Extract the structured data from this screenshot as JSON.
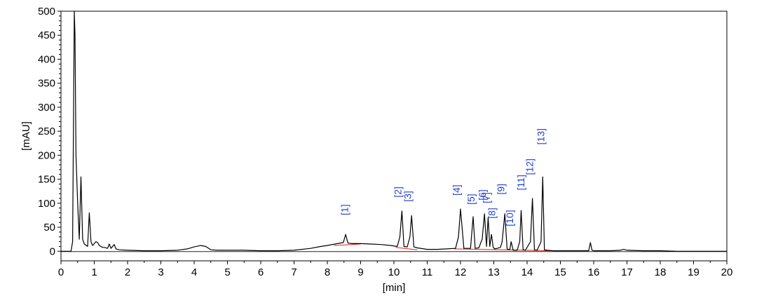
{
  "chart_data": {
    "type": "line",
    "xlabel": "[min]",
    "ylabel": "[mAU]",
    "xlim": [
      0,
      20
    ],
    "ylim": [
      -20,
      500
    ],
    "x_ticks": [
      0,
      1,
      2,
      3,
      4,
      5,
      6,
      7,
      8,
      9,
      10,
      11,
      12,
      13,
      14,
      15,
      16,
      17,
      18,
      19,
      20
    ],
    "y_ticks": [
      0,
      50,
      100,
      150,
      200,
      250,
      300,
      350,
      400,
      450,
      500
    ],
    "grid": false,
    "legend": "none",
    "colors": {
      "trace": "#000000",
      "baseline": "#e02020",
      "labels": "#1f3fd0"
    },
    "series": [
      {
        "x": [
          0.0,
          0.3,
          0.35,
          0.4,
          0.42,
          0.45,
          0.5,
          0.55,
          0.6,
          0.65,
          0.7,
          0.8,
          0.85,
          0.9,
          0.95,
          1.05,
          1.1,
          1.15,
          1.25,
          1.3,
          1.4,
          1.45,
          1.5,
          1.6,
          1.65,
          1.75,
          2.0,
          2.5,
          3.0,
          3.5,
          3.8,
          4.0,
          4.2,
          4.35,
          4.5,
          4.7,
          5.0,
          5.5,
          6.0,
          6.5,
          7.0,
          7.5,
          7.8,
          8.0,
          8.3,
          8.48,
          8.55,
          8.62,
          8.75,
          9.0,
          9.3,
          9.6,
          9.9,
          10.1,
          10.18,
          10.24,
          10.3,
          10.4,
          10.48,
          10.53,
          10.6,
          10.7,
          11.0,
          11.3,
          11.6,
          11.85,
          11.94,
          12.0,
          12.1,
          12.3,
          12.38,
          12.44,
          12.55,
          12.65,
          12.72,
          12.78,
          12.83,
          12.88,
          12.93,
          12.98,
          13.03,
          13.1,
          13.2,
          13.25,
          13.33,
          13.4,
          13.48,
          13.52,
          13.58,
          13.7,
          13.78,
          13.82,
          13.88,
          13.95,
          14.1,
          14.16,
          14.22,
          14.3,
          14.42,
          14.47,
          14.52,
          14.6,
          14.8,
          15.0,
          15.5,
          15.85,
          15.9,
          15.95,
          16.0,
          16.5,
          16.8,
          16.9,
          17.0,
          17.5,
          18.0,
          18.5,
          19.0,
          19.5,
          20.0
        ],
        "values": [
          0,
          0,
          20,
          500,
          450,
          200,
          100,
          25,
          155,
          25,
          15,
          10,
          80,
          20,
          12,
          20,
          18,
          12,
          8,
          8,
          6,
          15,
          6,
          14,
          5,
          3,
          2,
          1,
          1,
          2,
          5,
          9,
          12,
          10,
          3,
          2,
          2,
          2,
          1,
          1,
          2,
          6,
          10,
          12,
          16,
          18,
          35,
          17,
          16,
          16,
          15,
          14,
          12,
          10,
          30,
          84,
          10,
          9,
          30,
          74,
          9,
          7,
          4,
          4,
          5,
          6,
          30,
          88,
          6,
          6,
          72,
          6,
          7,
          25,
          78,
          10,
          70,
          10,
          35,
          8,
          5,
          6,
          8,
          20,
          78,
          5,
          3,
          20,
          2,
          2,
          20,
          85,
          3,
          2,
          20,
          110,
          3,
          2,
          20,
          155,
          3,
          2,
          1,
          1,
          1,
          1,
          18,
          2,
          1,
          1,
          2,
          4,
          2,
          1,
          1,
          0,
          0,
          0,
          0
        ]
      }
    ],
    "baseline_segments": [
      {
        "x": [
          8.2,
          9.0
        ],
        "values": [
          12,
          15
        ]
      },
      {
        "x": [
          10.05,
          10.7
        ],
        "values": [
          8,
          3
        ]
      },
      {
        "x": [
          11.8,
          14.7
        ],
        "values": [
          5,
          1
        ]
      }
    ],
    "annotations": [
      {
        "text": "[1]",
        "x": 8.62,
        "y": 75,
        "rotate": -90
      },
      {
        "text": "[2]",
        "x": 10.22,
        "y": 112,
        "rotate": -90
      },
      {
        "text": "[3]",
        "x": 10.52,
        "y": 103,
        "rotate": -90
      },
      {
        "text": "[4]",
        "x": 11.98,
        "y": 116,
        "rotate": -90
      },
      {
        "text": "[5]",
        "x": 12.42,
        "y": 97,
        "rotate": -90
      },
      {
        "text": "[6]",
        "x": 12.76,
        "y": 106,
        "rotate": -90
      },
      {
        "text": "[7]",
        "x": 12.88,
        "y": 100,
        "rotate": -90
      },
      {
        "text": "[8]",
        "x": 13.04,
        "y": 68,
        "rotate": -90
      },
      {
        "text": "[9]",
        "x": 13.32,
        "y": 118,
        "rotate": -90
      },
      {
        "text": "[10]",
        "x": 13.58,
        "y": 52,
        "rotate": -90
      },
      {
        "text": "[11]",
        "x": 13.92,
        "y": 127,
        "rotate": -90
      },
      {
        "text": "[12]",
        "x": 14.18,
        "y": 159,
        "rotate": -90
      },
      {
        "text": "[13]",
        "x": 14.52,
        "y": 222,
        "rotate": -90
      }
    ]
  }
}
